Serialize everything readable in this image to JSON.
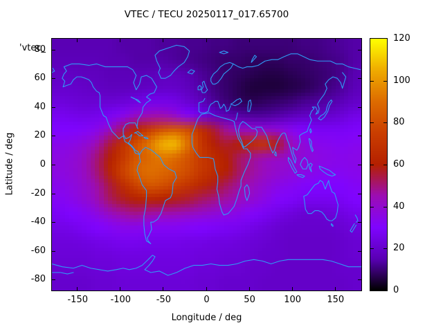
{
  "window": {
    "background": "#ffffff",
    "text_color": "#000000"
  },
  "chart_data": {
    "type": "heatmap",
    "title": "VTEC / TECU 20250117_017.65700",
    "key_label": "'vtec_",
    "xlabel": "Longitude / deg",
    "ylabel": "Latitude / deg",
    "xlim": [
      -180,
      180
    ],
    "ylim": [
      -87.5,
      87.5
    ],
    "xticks": [
      -150,
      -100,
      -50,
      0,
      50,
      100,
      150
    ],
    "yticks": [
      80,
      60,
      40,
      20,
      0,
      -20,
      -40,
      -60,
      -80
    ],
    "grid_on": false,
    "unit": "TECU",
    "coastline_color": "#2f9df5",
    "colorbar": {
      "min": 0,
      "max": 120,
      "ticks": [
        0,
        20,
        40,
        60,
        80,
        100,
        120
      ],
      "position": "right",
      "palette_name": "gnuplot default (black-violet-magenta-red-orange-yellow)",
      "palette_stops": [
        "#000000",
        "#5a00b4",
        "#7f04ff",
        "#9c0db4",
        "#b42000",
        "#ca3e00",
        "#dd6b00",
        "#efab00",
        "#ffff00"
      ]
    },
    "lon_centers": [
      -172.5,
      -157.5,
      -142.5,
      -127.5,
      -112.5,
      -97.5,
      -82.5,
      -67.5,
      -52.5,
      -37.5,
      -22.5,
      -7.5,
      7.5,
      22.5,
      37.5,
      52.5,
      67.5,
      82.5,
      97.5,
      112.5,
      127.5,
      142.5,
      157.5,
      172.5
    ],
    "lat_centers": [
      85,
      75,
      65,
      55,
      45,
      35,
      25,
      15,
      5,
      -5,
      -15,
      -25,
      -35,
      -45,
      -55,
      -65,
      -75,
      -85
    ],
    "values_tecu": [
      [
        15,
        15,
        15,
        15,
        15,
        14,
        14,
        14,
        13,
        13,
        12,
        12,
        11,
        11,
        10,
        10,
        10,
        10,
        10,
        11,
        11,
        12,
        13,
        14
      ],
      [
        16,
        16,
        16,
        16,
        15,
        15,
        14,
        14,
        14,
        13,
        12,
        11,
        10,
        9,
        9,
        8,
        8,
        8,
        9,
        9,
        10,
        11,
        12,
        14
      ],
      [
        18,
        18,
        17,
        17,
        16,
        16,
        16,
        16,
        17,
        17,
        15,
        13,
        11,
        9,
        8,
        7,
        6,
        6,
        7,
        8,
        9,
        10,
        12,
        15
      ],
      [
        20,
        20,
        19,
        18,
        17,
        17,
        17,
        18,
        19,
        19,
        17,
        14,
        11,
        9,
        7,
        5,
        5,
        5,
        6,
        7,
        9,
        11,
        13,
        16
      ],
      [
        23,
        22,
        21,
        21,
        21,
        22,
        24,
        26,
        26,
        25,
        21,
        17,
        13,
        10,
        8,
        7,
        8,
        9,
        10,
        12,
        13,
        14,
        16,
        19
      ],
      [
        27,
        26,
        25,
        26,
        28,
        33,
        40,
        44,
        45,
        40,
        32,
        25,
        20,
        16,
        14,
        13,
        13,
        14,
        16,
        18,
        19,
        20,
        22,
        25
      ],
      [
        30,
        30,
        31,
        34,
        42,
        52,
        62,
        72,
        80,
        84,
        80,
        68,
        56,
        47,
        42,
        40,
        39,
        37,
        33,
        30,
        28,
        28,
        28,
        29
      ],
      [
        34,
        35,
        38,
        45,
        55,
        68,
        80,
        92,
        105,
        108,
        92,
        72,
        60,
        56,
        60,
        66,
        70,
        58,
        44,
        38,
        34,
        33,
        32,
        33
      ],
      [
        36,
        38,
        42,
        50,
        60,
        72,
        83,
        89,
        93,
        90,
        82,
        73,
        66,
        60,
        52,
        48,
        45,
        42,
        40,
        38,
        36,
        35,
        34,
        35
      ],
      [
        36,
        38,
        42,
        50,
        62,
        76,
        86,
        91,
        89,
        85,
        80,
        72,
        66,
        60,
        52,
        47,
        43,
        40,
        38,
        36,
        34,
        33,
        33,
        34
      ],
      [
        34,
        36,
        40,
        46,
        55,
        66,
        76,
        83,
        81,
        76,
        70,
        64,
        58,
        52,
        47,
        43,
        39,
        35,
        33,
        31,
        30,
        30,
        30,
        32
      ],
      [
        32,
        34,
        38,
        44,
        52,
        57,
        60,
        62,
        60,
        58,
        56,
        52,
        49,
        46,
        43,
        39,
        35,
        31,
        29,
        27,
        27,
        27,
        28,
        30
      ],
      [
        28,
        30,
        32,
        36,
        42,
        46,
        48,
        46,
        45,
        44,
        42,
        40,
        38,
        36,
        34,
        31,
        28,
        25,
        23,
        21,
        21,
        22,
        24,
        26
      ],
      [
        25,
        26,
        28,
        30,
        32,
        34,
        34,
        33,
        32,
        32,
        31,
        30,
        29,
        28,
        27,
        25,
        23,
        21,
        20,
        20,
        20,
        20,
        21,
        23
      ],
      [
        23,
        23,
        24,
        25,
        26,
        27,
        27,
        26,
        26,
        26,
        25,
        25,
        24,
        24,
        23,
        22,
        21,
        20,
        19,
        19,
        19,
        19,
        20,
        21
      ],
      [
        22,
        22,
        22,
        23,
        23,
        24,
        24,
        24,
        24,
        24,
        24,
        23,
        23,
        22,
        22,
        21,
        20,
        20,
        19,
        19,
        19,
        19,
        20,
        21
      ],
      [
        21,
        21,
        21,
        22,
        22,
        23,
        23,
        23,
        23,
        23,
        23,
        22,
        22,
        21,
        21,
        20,
        20,
        19,
        19,
        19,
        19,
        19,
        20,
        20
      ],
      [
        20,
        20,
        20,
        21,
        21,
        22,
        22,
        22,
        22,
        22,
        22,
        21,
        21,
        20,
        20,
        20,
        19,
        19,
        19,
        19,
        19,
        19,
        19,
        20
      ]
    ]
  }
}
